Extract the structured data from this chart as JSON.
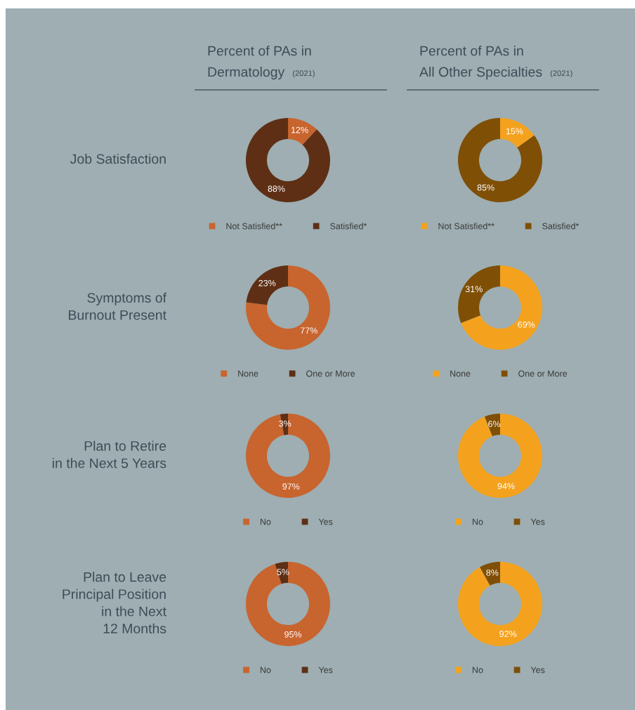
{
  "chart_data": [
    {
      "type": "donut",
      "title": "Percent of PAs in\nDermatology",
      "subtitle": "(2021)",
      "ylabel": "Job Satisfaction",
      "categories": [
        "Not Satisfied**",
        "Satisfied*"
      ],
      "values": [
        12,
        88
      ],
      "colors": [
        "#c8642e",
        "#5e2f15"
      ],
      "value_labels": [
        "12%",
        "88%"
      ],
      "legend": "bottom"
    },
    {
      "type": "donut",
      "title": "Percent of PAs in\nAll Other Specialties",
      "subtitle": "(2021)",
      "categories": [
        "Not Satisfied**",
        "Satisfied*"
      ],
      "values": [
        15,
        85
      ],
      "colors": [
        "#f4a21e",
        "#7f4f06"
      ],
      "value_labels": [
        "15%",
        "85%"
      ],
      "legend": "bottom"
    },
    {
      "type": "donut",
      "ylabel": "Symptoms of\nBurnout Present",
      "categories": [
        "None",
        "One or More"
      ],
      "values": [
        77,
        23
      ],
      "colors": [
        "#c8642e",
        "#5e2f15"
      ],
      "value_labels": [
        "77%",
        "23%"
      ],
      "legend": "bottom"
    },
    {
      "type": "donut",
      "categories": [
        "None",
        "One or More"
      ],
      "values": [
        69,
        31
      ],
      "colors": [
        "#f4a21e",
        "#7f4f06"
      ],
      "value_labels": [
        "69%",
        "31%"
      ],
      "legend": "bottom"
    },
    {
      "type": "donut",
      "ylabel": "Plan to Retire\nin the Next 5 Years",
      "categories": [
        "No",
        "Yes"
      ],
      "values": [
        97,
        3
      ],
      "colors": [
        "#c8642e",
        "#5e2f15"
      ],
      "value_labels": [
        "97%",
        "3%"
      ],
      "legend": "bottom"
    },
    {
      "type": "donut",
      "categories": [
        "No",
        "Yes"
      ],
      "values": [
        94,
        6
      ],
      "colors": [
        "#f4a21e",
        "#7f4f06"
      ],
      "value_labels": [
        "94%",
        "6%"
      ],
      "legend": "bottom"
    },
    {
      "type": "donut",
      "ylabel": "Plan to Leave\nPrincipal Position\nin the Next\n12 Months",
      "categories": [
        "No",
        "Yes"
      ],
      "values": [
        95,
        5
      ],
      "colors": [
        "#c8642e",
        "#5e2f15"
      ],
      "value_labels": [
        "95%",
        "5%"
      ],
      "legend": "bottom"
    },
    {
      "type": "donut",
      "categories": [
        "No",
        "Yes"
      ],
      "values": [
        92,
        8
      ],
      "colors": [
        "#f4a21e",
        "#7f4f06"
      ],
      "value_labels": [
        "92%",
        "8%"
      ],
      "legend": "bottom"
    }
  ]
}
